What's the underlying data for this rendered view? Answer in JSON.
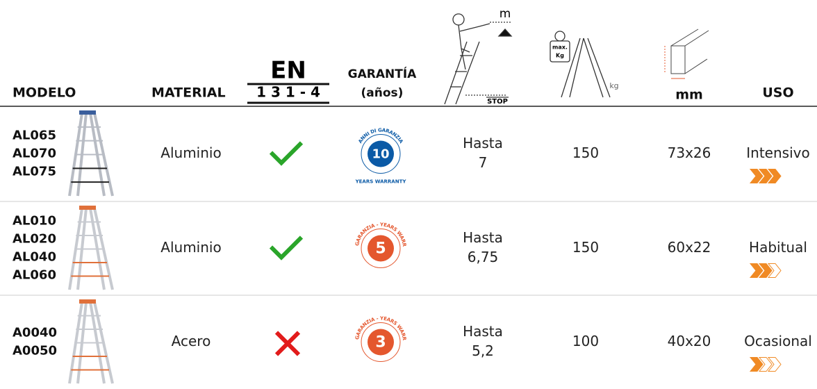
{
  "header": {
    "model": "MODELO",
    "material": "MATERIAL",
    "en_title": "EN",
    "en_code": "1 3 1 - 4",
    "warranty_title": "GARANTÍA",
    "warranty_unit": "(años)",
    "height_unit": "m",
    "stop": "STOP",
    "max_label": "max.",
    "max_unit": "Kg",
    "load_unit": "kg",
    "section_unit": "mm",
    "use": "USO"
  },
  "rows": [
    {
      "models": [
        "AL065",
        "AL070",
        "AL075"
      ],
      "material": "Aluminio",
      "en131": true,
      "warranty": {
        "years": 10,
        "ring_top": "ANNI DI GARANZIA",
        "ring_bottom": "YEARS WARRANTY",
        "color": "#0b5aa6"
      },
      "height_label": "Hasta",
      "height": 7,
      "load": 150,
      "section": "73x26",
      "use": "Intensivo",
      "level": 3
    },
    {
      "models": [
        "AL010",
        "AL020",
        "AL040",
        "AL060"
      ],
      "material": "Aluminio",
      "en131": true,
      "warranty": {
        "years": 5,
        "ring_top": "ANNI GARANZIA - YEARS WARRANTY",
        "color": "#e4572e"
      },
      "height_label": "Hasta",
      "height": "6,75",
      "load": 150,
      "section": "60x22",
      "use": "Habitual",
      "level": 2
    },
    {
      "models": [
        "A0040",
        "A0050"
      ],
      "material": "Acero",
      "en131": false,
      "warranty": {
        "years": 3,
        "ring_top": "ANNI GARANZIA - YEARS WARRANTY",
        "color": "#e4572e"
      },
      "height_label": "Hasta",
      "height": "5,2",
      "load": 100,
      "section": "40x20",
      "use": "Ocasional",
      "level": 1
    }
  ]
}
